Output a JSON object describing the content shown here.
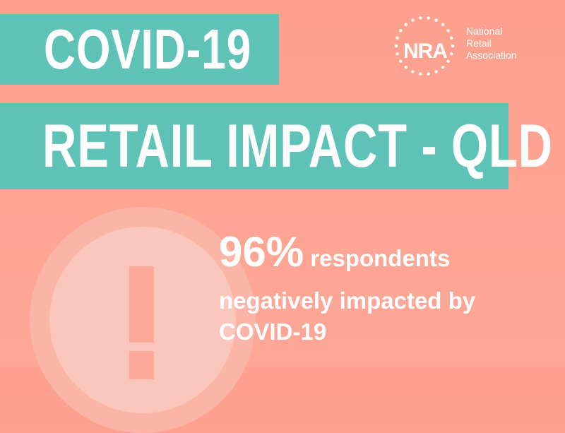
{
  "headline": {
    "line1": "COVID-19",
    "line2": "RETAIL IMPACT - QLD"
  },
  "logo": {
    "mark": "NRA",
    "name_lines": [
      "National",
      "Retail",
      "Association"
    ]
  },
  "stat": {
    "value": "96%",
    "text_line1": " respondents",
    "text_line2": "negatively impacted by",
    "text_line3": "COVID-19"
  },
  "icons": {
    "alert": "exclamation-circle-icon",
    "logo_ring": "dotted-circle-icon"
  },
  "colors": {
    "background": "#fda08e",
    "banner": "#5ec2b7",
    "text": "#ffffff",
    "alert_ring": "#fbb5a6",
    "alert_fill": "#fbc6bb"
  }
}
